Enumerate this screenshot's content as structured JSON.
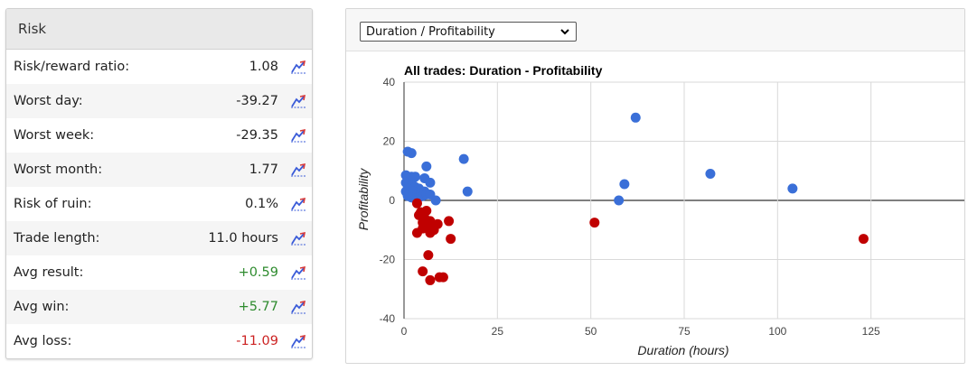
{
  "risk": {
    "title": "Risk",
    "rows": [
      {
        "label": "Risk/reward ratio:",
        "value": "1.08",
        "tone": "neutral"
      },
      {
        "label": "Worst day:",
        "value": "-39.27",
        "tone": "neutral"
      },
      {
        "label": "Worst week:",
        "value": "-29.35",
        "tone": "neutral"
      },
      {
        "label": "Worst month:",
        "value": "1.77",
        "tone": "neutral"
      },
      {
        "label": "Risk of ruin:",
        "value": "0.1%",
        "tone": "neutral"
      },
      {
        "label": "Trade length:",
        "value": "11.0 hours",
        "tone": "neutral"
      },
      {
        "label": "Avg result:",
        "value": "+0.59",
        "tone": "pos"
      },
      {
        "label": "Avg win:",
        "value": "+5.77",
        "tone": "pos"
      },
      {
        "label": "Avg loss:",
        "value": "-11.09",
        "tone": "neg"
      }
    ],
    "icon": "chart-trend-icon"
  },
  "chart_selector": {
    "selected": "Duration / Profitability",
    "icon": "chevron-down-icon"
  },
  "chart_data": {
    "type": "scatter",
    "title": "All trades: Duration - Profitability",
    "xlabel": "Duration (hours)",
    "ylabel": "Profitability",
    "xlim": [
      0,
      150
    ],
    "ylim": [
      -40,
      40
    ],
    "xticks": [
      0,
      25,
      50,
      75,
      100,
      125
    ],
    "yticks": [
      40,
      20,
      0,
      -20,
      -40
    ],
    "grid": true,
    "legend": "none",
    "colors": {
      "win": "#3a6fd8",
      "loss": "#c00000"
    },
    "series": [
      {
        "group": "win",
        "points": [
          [
            0.5,
            8.5
          ],
          [
            1,
            8
          ],
          [
            1.5,
            7.5
          ],
          [
            2,
            8
          ],
          [
            2.5,
            7.5
          ],
          [
            3,
            8
          ],
          [
            0.5,
            6
          ],
          [
            1,
            5.5
          ],
          [
            2,
            5
          ],
          [
            3,
            4.5
          ],
          [
            4,
            4
          ],
          [
            1,
            4
          ],
          [
            0.5,
            3
          ],
          [
            1.5,
            2.5
          ],
          [
            2.5,
            3
          ],
          [
            3.5,
            2
          ],
          [
            4.5,
            2.5
          ],
          [
            5.5,
            3
          ],
          [
            1,
            1.5
          ],
          [
            2,
            1
          ],
          [
            3,
            0.5
          ],
          [
            4,
            1
          ],
          [
            5,
            1.5
          ],
          [
            6,
            2
          ],
          [
            7,
            2
          ],
          [
            1,
            16.5
          ],
          [
            2,
            16
          ],
          [
            6,
            11.5
          ],
          [
            5.5,
            7.5
          ],
          [
            7,
            6
          ],
          [
            8.5,
            0
          ],
          [
            16,
            14
          ],
          [
            17,
            3
          ],
          [
            57.5,
            0
          ],
          [
            59,
            5.5
          ],
          [
            62,
            28
          ],
          [
            82,
            9
          ],
          [
            104,
            4
          ]
        ]
      },
      {
        "group": "loss",
        "points": [
          [
            3.5,
            -1
          ],
          [
            4,
            -5
          ],
          [
            4.5,
            -4
          ],
          [
            5,
            -7.5
          ],
          [
            5.5,
            -6
          ],
          [
            6,
            -3.5
          ],
          [
            6.5,
            -8.5
          ],
          [
            7,
            -7
          ],
          [
            8,
            -10
          ],
          [
            9,
            -8
          ],
          [
            6,
            -8
          ],
          [
            5,
            -9.5
          ],
          [
            3.5,
            -11
          ],
          [
            7,
            -11
          ],
          [
            12,
            -7
          ],
          [
            12.5,
            -13
          ],
          [
            6.5,
            -18.5
          ],
          [
            5,
            -24
          ],
          [
            7,
            -27
          ],
          [
            9.5,
            -26
          ],
          [
            10.5,
            -26
          ],
          [
            51,
            -7.5
          ],
          [
            123,
            -13
          ]
        ]
      }
    ]
  }
}
